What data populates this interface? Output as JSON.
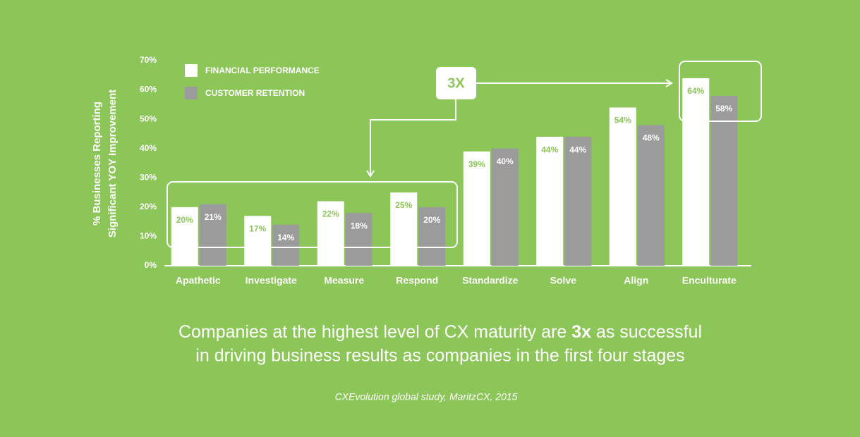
{
  "chart_data": {
    "type": "bar",
    "y_label": [
      "% Businesses Reporting",
      "Significant YOY Improvement"
    ],
    "categories": [
      "Apathetic",
      "Investigate",
      "Measure",
      "Respond",
      "Standardize",
      "Solve",
      "Align",
      "Enculturate"
    ],
    "series": [
      {
        "name": "FINANCIAL PERFORMANCE",
        "color": "#ffffff",
        "label_color": "#8cc558",
        "values": [
          20,
          17,
          22,
          25,
          39,
          44,
          54,
          64
        ],
        "value_labels": [
          "20%",
          "17%",
          "22%",
          "25%",
          "39%",
          "44%",
          "54%",
          "64%"
        ]
      },
      {
        "name": "CUSTOMER RETENTION",
        "color": "#9b9b9b",
        "label_color": "#ffffff",
        "values": [
          21,
          14,
          18,
          20,
          40,
          44,
          48,
          58
        ],
        "value_labels": [
          "21%",
          "14%",
          "18%",
          "20%",
          "40%",
          "44%",
          "48%",
          "58%"
        ]
      }
    ],
    "ylim": [
      0,
      70
    ],
    "yticks": [
      {
        "value": 0,
        "label": "0%"
      },
      {
        "value": 10,
        "label": "10%"
      },
      {
        "value": 20,
        "label": "20%"
      },
      {
        "value": 30,
        "label": "30%"
      },
      {
        "value": 40,
        "label": "40%"
      },
      {
        "value": 50,
        "label": "50%"
      },
      {
        "value": 60,
        "label": "60%"
      },
      {
        "value": 70,
        "label": "70%"
      }
    ],
    "annotation": "3X",
    "caption": {
      "line1": [
        "Companies at the highest level of CX maturity are ",
        "3x",
        " as successful"
      ],
      "line2": "in driving business results as companies in the first four stages"
    },
    "source": "CXEvolution global study, MaritzCX, 2015"
  }
}
